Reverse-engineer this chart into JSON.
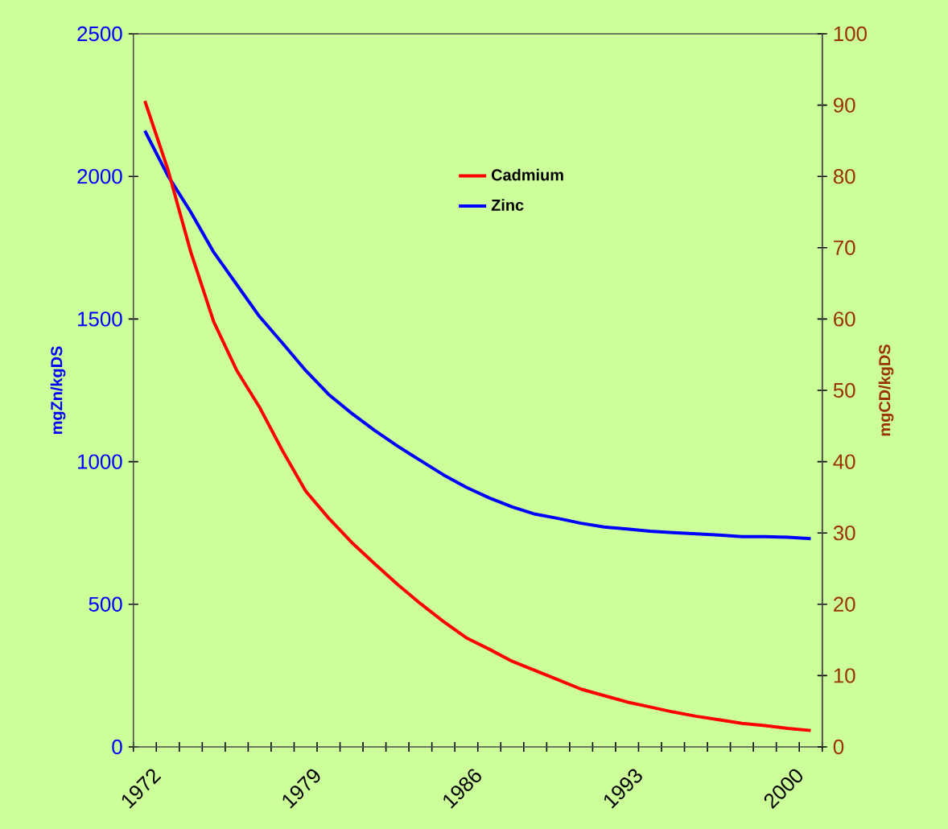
{
  "chart_data": {
    "type": "line",
    "categories": [
      "1972",
      null,
      null,
      null,
      null,
      null,
      null,
      "1979",
      null,
      null,
      null,
      null,
      null,
      null,
      "1986",
      null,
      null,
      null,
      null,
      null,
      null,
      "1993",
      null,
      null,
      null,
      null,
      null,
      null,
      "2000",
      null
    ],
    "series": [
      {
        "name": "Cadmium",
        "color": "#ff0000",
        "axis": "y2",
        "values": [
          90.6,
          81,
          69.4,
          59.6,
          52.8,
          47.6,
          41.5,
          35.9,
          32.1,
          28.7,
          25.7,
          22.8,
          20.1,
          17.6,
          15.3,
          13.7,
          12.0,
          10.7,
          9.4,
          8.1,
          7.2,
          6.3,
          5.6,
          4.9,
          4.3,
          3.8,
          3.3,
          3.0,
          2.6,
          2.3
        ]
      },
      {
        "name": "Zinc",
        "color": "#0000ff",
        "values": [
          2160,
          2003,
          1875,
          1734,
          1621,
          1508,
          1415,
          1320,
          1236,
          1170,
          1110,
          1055,
          1004,
          954,
          910,
          873,
          841,
          816,
          801,
          784,
          771,
          764,
          756,
          751,
          747,
          743,
          737,
          737,
          735,
          730
        ]
      }
    ],
    "ylabel": "mgZn/kgDS",
    "y2label": "mgCD/kgDS",
    "ylim": [
      0,
      2500
    ],
    "yticks": [
      0,
      500,
      1000,
      1500,
      2000,
      2500
    ],
    "y2lim": [
      0,
      100
    ],
    "y2ticks": [
      0,
      10,
      20,
      30,
      40,
      50,
      60,
      70,
      80,
      90,
      100
    ],
    "legend": "top"
  }
}
